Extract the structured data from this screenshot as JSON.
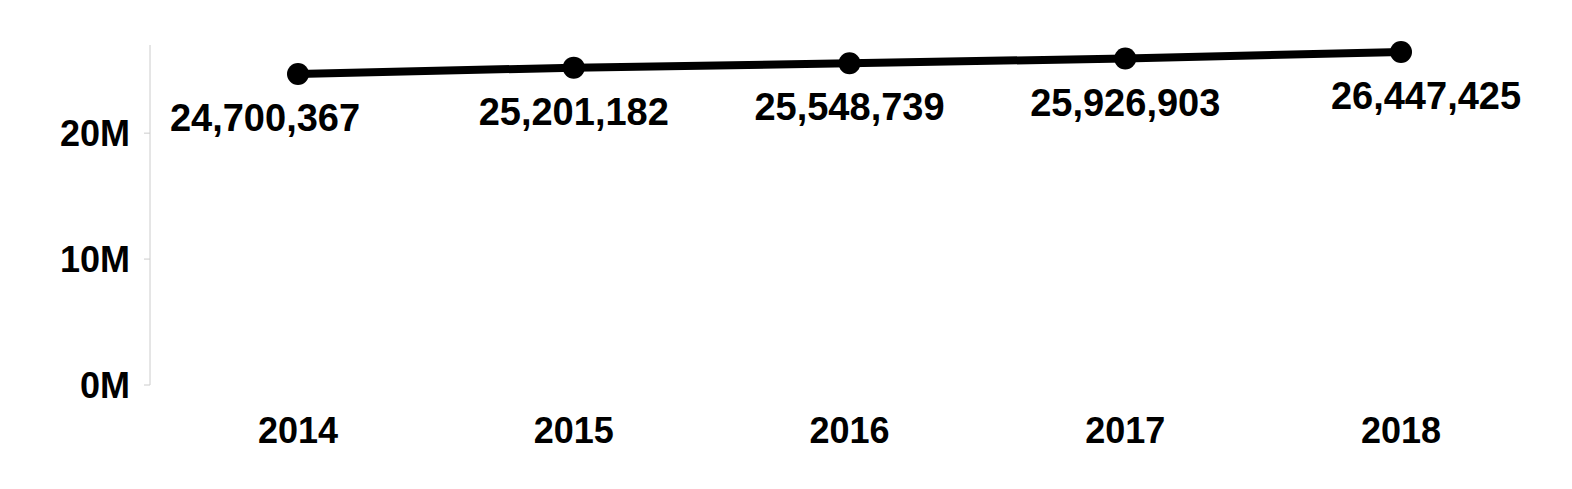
{
  "chart_data": {
    "type": "line",
    "categories": [
      "2014",
      "2015",
      "2016",
      "2017",
      "2018"
    ],
    "values": [
      24700367,
      25201182,
      25548739,
      25926903,
      26447425
    ],
    "value_labels": [
      "24,700,367",
      "25,201,182",
      "25,548,739",
      "25,926,903",
      "26,447,425"
    ],
    "color": "#000000",
    "marker": "circle",
    "line_style": "solid",
    "data_labels": true,
    "grid": false,
    "ylim": [
      0,
      27000000
    ],
    "yticks": [
      {
        "value": 0,
        "label": "0M"
      },
      {
        "value": 10000000,
        "label": "10M"
      },
      {
        "value": 20000000,
        "label": "20M"
      }
    ]
  }
}
